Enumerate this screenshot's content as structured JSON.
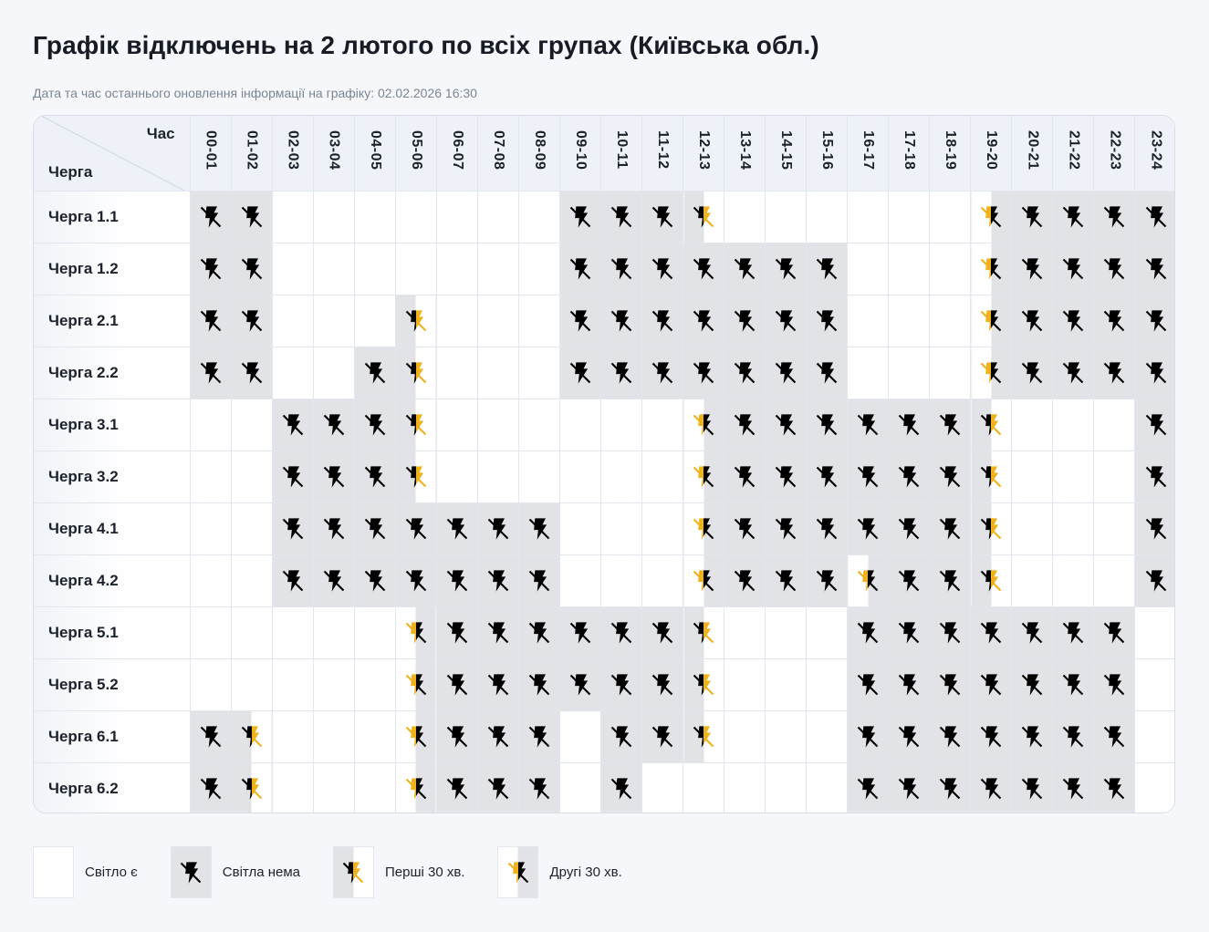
{
  "header": {
    "title": "Графік відключень на 2 лютого по всіх групах (Київська обл.)",
    "updated": "Дата та час останнього оновлення інформації на графіку: 02.02.2026 16:30"
  },
  "table": {
    "corner_hour_label": "Час",
    "corner_queue_label": "Черга",
    "hours": [
      "00-01",
      "01-02",
      "02-03",
      "03-04",
      "04-05",
      "05-06",
      "06-07",
      "07-08",
      "08-09",
      "09-10",
      "10-11",
      "11-12",
      "12-13",
      "13-14",
      "14-15",
      "15-16",
      "16-17",
      "17-18",
      "18-19",
      "19-20",
      "20-21",
      "21-22",
      "22-23",
      "23-24"
    ],
    "rows": [
      {
        "name": "Черга 1.1",
        "cells": [
          "off",
          "off",
          "on",
          "on",
          "on",
          "on",
          "on",
          "on",
          "on",
          "off",
          "off",
          "off",
          "first",
          "on",
          "on",
          "on",
          "on",
          "on",
          "on",
          "second",
          "off",
          "off",
          "off",
          "off"
        ]
      },
      {
        "name": "Черга 1.2",
        "cells": [
          "off",
          "off",
          "on",
          "on",
          "on",
          "on",
          "on",
          "on",
          "on",
          "off",
          "off",
          "off",
          "off",
          "off",
          "off",
          "off",
          "on",
          "on",
          "on",
          "second",
          "off",
          "off",
          "off",
          "off"
        ]
      },
      {
        "name": "Черга 2.1",
        "cells": [
          "off",
          "off",
          "on",
          "on",
          "on",
          "first",
          "on",
          "on",
          "on",
          "off",
          "off",
          "off",
          "off",
          "off",
          "off",
          "off",
          "on",
          "on",
          "on",
          "second",
          "off",
          "off",
          "off",
          "off"
        ]
      },
      {
        "name": "Черга 2.2",
        "cells": [
          "off",
          "off",
          "on",
          "on",
          "off",
          "first",
          "on",
          "on",
          "on",
          "off",
          "off",
          "off",
          "off",
          "off",
          "off",
          "off",
          "on",
          "on",
          "on",
          "second",
          "off",
          "off",
          "off",
          "off"
        ]
      },
      {
        "name": "Черга 3.1",
        "cells": [
          "on",
          "on",
          "off",
          "off",
          "off",
          "first",
          "on",
          "on",
          "on",
          "on",
          "on",
          "on",
          "second",
          "off",
          "off",
          "off",
          "off",
          "off",
          "off",
          "first",
          "on",
          "on",
          "on",
          "off"
        ]
      },
      {
        "name": "Черга 3.2",
        "cells": [
          "on",
          "on",
          "off",
          "off",
          "off",
          "first",
          "on",
          "on",
          "on",
          "on",
          "on",
          "on",
          "second",
          "off",
          "off",
          "off",
          "off",
          "off",
          "off",
          "first",
          "on",
          "on",
          "on",
          "off"
        ]
      },
      {
        "name": "Черга 4.1",
        "cells": [
          "on",
          "on",
          "off",
          "off",
          "off",
          "off",
          "off",
          "off",
          "off",
          "on",
          "on",
          "on",
          "second",
          "off",
          "off",
          "off",
          "off",
          "off",
          "off",
          "first",
          "on",
          "on",
          "on",
          "off"
        ]
      },
      {
        "name": "Черга 4.2",
        "cells": [
          "on",
          "on",
          "off",
          "off",
          "off",
          "off",
          "off",
          "off",
          "off",
          "on",
          "on",
          "on",
          "second",
          "off",
          "off",
          "off",
          "second",
          "off",
          "off",
          "first",
          "on",
          "on",
          "on",
          "off"
        ]
      },
      {
        "name": "Черга 5.1",
        "cells": [
          "on",
          "on",
          "on",
          "on",
          "on",
          "second",
          "off",
          "off",
          "off",
          "off",
          "off",
          "off",
          "first",
          "on",
          "on",
          "on",
          "off",
          "off",
          "off",
          "off",
          "off",
          "off",
          "off",
          "on"
        ]
      },
      {
        "name": "Черга 5.2",
        "cells": [
          "on",
          "on",
          "on",
          "on",
          "on",
          "second",
          "off",
          "off",
          "off",
          "off",
          "off",
          "off",
          "first",
          "on",
          "on",
          "on",
          "off",
          "off",
          "off",
          "off",
          "off",
          "off",
          "off",
          "on"
        ]
      },
      {
        "name": "Черга 6.1",
        "cells": [
          "off",
          "first",
          "on",
          "on",
          "on",
          "second",
          "off",
          "off",
          "off",
          "on",
          "off",
          "off",
          "first",
          "on",
          "on",
          "on",
          "off",
          "off",
          "off",
          "off",
          "off",
          "off",
          "off",
          "on"
        ]
      },
      {
        "name": "Черга 6.2",
        "cells": [
          "off",
          "first",
          "on",
          "on",
          "on",
          "second",
          "off",
          "off",
          "off",
          "on",
          "off",
          "on",
          "on",
          "on",
          "on",
          "on",
          "off",
          "off",
          "off",
          "off",
          "off",
          "off",
          "off",
          "on"
        ]
      }
    ]
  },
  "legend": [
    {
      "state": "on",
      "label": "Світло є"
    },
    {
      "state": "off",
      "label": "Світла нема"
    },
    {
      "state": "first",
      "label": "Перші 30 хв."
    },
    {
      "state": "second",
      "label": "Другі 30 хв."
    }
  ],
  "colors": {
    "off_bg": "#e2e3e6",
    "on_bg": "#ffffff",
    "icon_dark": "#000000",
    "icon_accent": "#f0b21c",
    "page_bg": "#f6f7fa",
    "header_bg": "#eef2f8"
  },
  "icons": {
    "power_off": "bolt-slash-icon"
  }
}
